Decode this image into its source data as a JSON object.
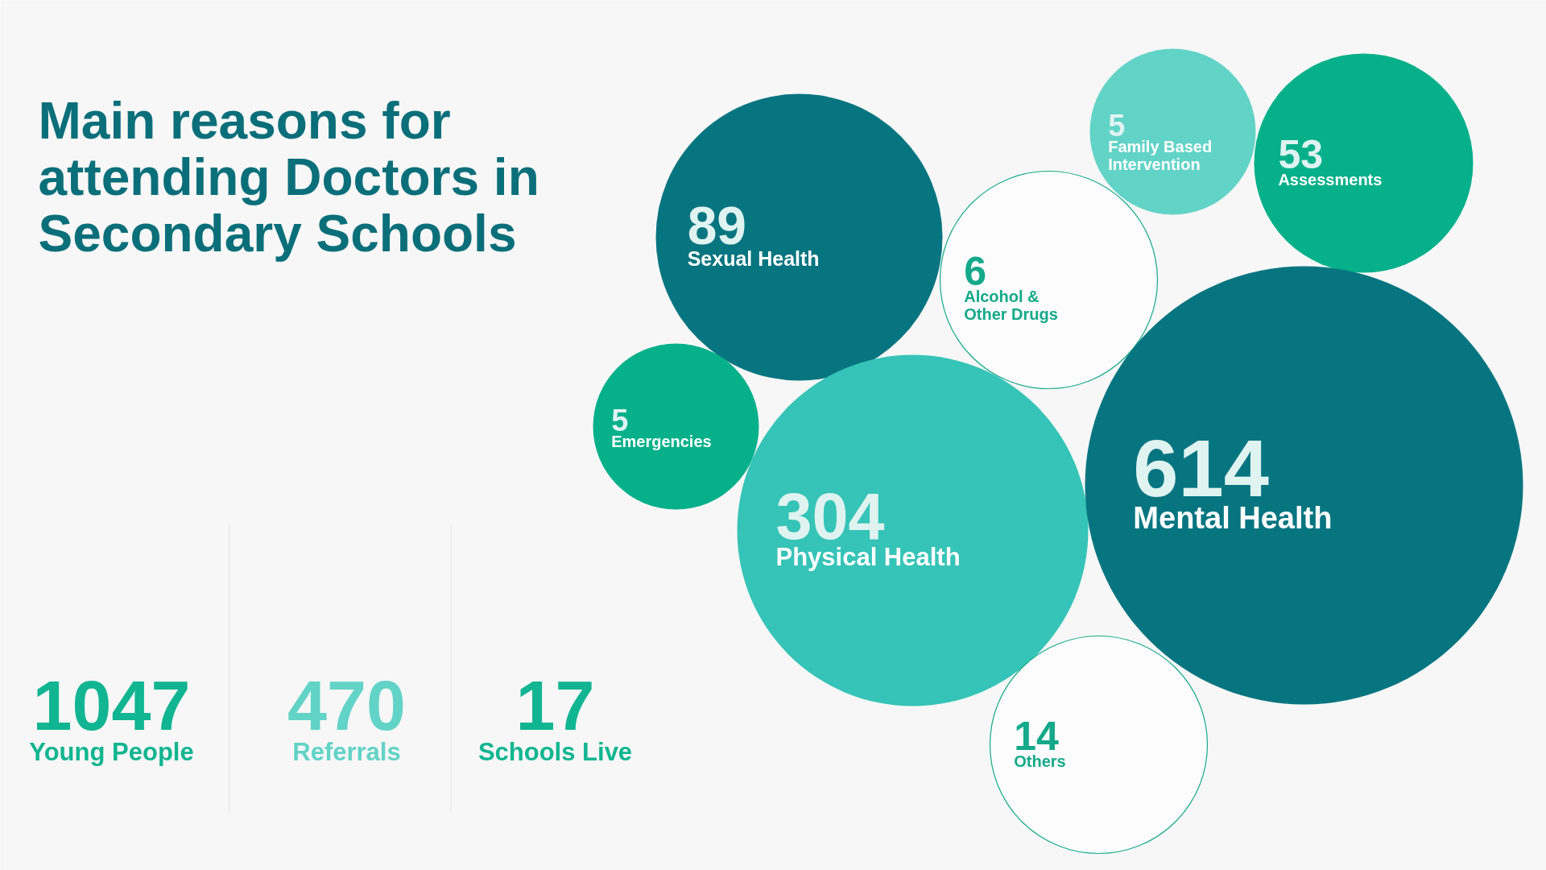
{
  "chart_data": [
    {
      "type": "other",
      "title": "Main reasons for attending Doctors in Secondary Schools",
      "categories": [
        "Sexual Health",
        "Family Based Intervention",
        "Assessments",
        "Alcohol & Other Drugs",
        "Emergencies",
        "Physical Health",
        "Mental Health",
        "Others"
      ],
      "values": [
        89,
        5,
        53,
        6,
        5,
        304,
        614,
        14
      ],
      "colors": [
        "#077580",
        "#62d3c7",
        "#05b08a",
        "#ffffff",
        "#05b08a",
        "#35c4b7",
        "#077580",
        "#ffffff"
      ],
      "data_labels": true
    },
    {
      "type": "other",
      "categories": [
        "Young People",
        "Referrals",
        "Schools Live"
      ],
      "values": [
        1047,
        470,
        17
      ],
      "colors": [
        "#11b591",
        "#62d3c7",
        "#11b591"
      ],
      "data_labels": true
    }
  ]
}
